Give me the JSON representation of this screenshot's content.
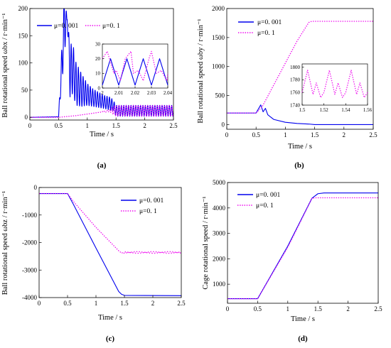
{
  "chart_data": [
    {
      "panel": "(a)",
      "type": "line",
      "xlabel": "Time / s",
      "ylabel": "Ball rotational speed ωbx / r·min⁻¹",
      "xlim": [
        0,
        2.5
      ],
      "ylim": [
        -5,
        200
      ],
      "xticks": [
        "0",
        "0.5",
        "1",
        "1.5",
        "2",
        "2.5"
      ],
      "yticks": [
        "0",
        "50",
        "100",
        "150",
        "200"
      ],
      "legend": "top-left",
      "series": [
        {
          "name": "μ=0. 001",
          "color": "#0000ee",
          "style": "solid",
          "x": [
            0,
            0.5,
            0.6,
            0.65,
            0.7,
            0.75,
            0.8,
            0.9,
            1.0,
            1.1,
            1.2,
            1.3,
            1.4,
            1.45,
            1.5,
            2.0,
            2.5
          ],
          "y": [
            0,
            1,
            170,
            180,
            85,
            90,
            62,
            50,
            42,
            36,
            32,
            28,
            25,
            22,
            12,
            12,
            12
          ],
          "oscillation_amplitude": [
            0,
            0,
            60,
            0,
            50,
            45,
            40,
            30,
            20,
            16,
            14,
            12,
            12,
            10,
            10,
            10,
            10
          ]
        },
        {
          "name": "μ=0. 1",
          "color": "#ee00ee",
          "style": "dotted",
          "x": [
            0,
            0.5,
            0.8,
            1.0,
            1.2,
            1.4,
            1.45,
            1.5,
            2.0,
            2.5
          ],
          "y": [
            0,
            0,
            3,
            6,
            9,
            12,
            13,
            12,
            12,
            12
          ],
          "oscillation_amplitude": [
            0,
            0,
            0,
            0,
            0,
            2,
            8,
            10,
            10,
            10
          ]
        }
      ],
      "inset": {
        "xlim": [
          2,
          2.04
        ],
        "ylim": [
          0,
          30
        ],
        "xticks": [
          "2",
          "2.01",
          "2.02",
          "2.03",
          "2.04"
        ],
        "yticks": [
          "0",
          "10",
          "20",
          "30"
        ],
        "series": [
          {
            "name": "μ=0. 001",
            "x": [
              2,
              2.005,
              2.01,
              2.015,
              2.02,
              2.025,
              2.03,
              2.035,
              2.04
            ],
            "y": [
              2,
              20,
              2,
              20,
              2,
              20,
              2,
              20,
              2
            ]
          },
          {
            "name": "μ=0. 1",
            "x": [
              2,
              2.003,
              2.007,
              2.0085,
              2.011,
              2.014,
              2.0175,
              2.019,
              2.022,
              2.025,
              2.0285,
              2.03,
              2.033,
              2.036,
              2.0395,
              2.04
            ],
            "y": [
              20,
              25,
              10,
              12,
              5,
              20,
              25,
              10,
              12,
              5,
              20,
              25,
              10,
              12,
              5,
              10
            ]
          }
        ]
      }
    },
    {
      "panel": "(b)",
      "type": "line",
      "xlabel": "Time / s",
      "ylabel": "Ball rotational speed ωby / r·min⁻¹",
      "xlim": [
        0,
        2.5
      ],
      "ylim": [
        -80,
        2000
      ],
      "xticks": [
        "0",
        "0.5",
        "1",
        "1.5",
        "2",
        "2.5"
      ],
      "yticks": [
        "0",
        "500",
        "1000",
        "1500",
        "2000"
      ],
      "legend": "top-left",
      "series": [
        {
          "name": "μ=0. 001",
          "color": "#0000ee",
          "style": "solid",
          "x": [
            0,
            0.5,
            0.58,
            0.62,
            0.66,
            0.7,
            0.8,
            1.0,
            1.2,
            1.4,
            1.5,
            2.5
          ],
          "y": [
            200,
            200,
            340,
            220,
            280,
            170,
            90,
            40,
            20,
            10,
            0,
            0
          ]
        },
        {
          "name": "μ=0. 1",
          "color": "#ee00ee",
          "style": "dotted",
          "x": [
            0,
            0.5,
            0.6,
            0.8,
            1.0,
            1.2,
            1.4,
            1.45,
            2.5
          ],
          "y": [
            200,
            200,
            300,
            680,
            1060,
            1440,
            1760,
            1780,
            1780
          ]
        }
      ],
      "inset": {
        "xlim": [
          1.5,
          1.56
        ],
        "ylim": [
          1740,
          1805
        ],
        "xticks": [
          "1.5",
          "1.52",
          "1.54",
          "1.56"
        ],
        "yticks": [
          "1740",
          "1760",
          "1780",
          "1800"
        ],
        "series": [
          {
            "name": "μ=0. 1",
            "x": [
              1.5,
              1.505,
              1.51,
              1.513,
              1.517,
              1.52,
              1.525,
              1.53,
              1.533,
              1.537,
              1.54,
              1.545,
              1.55,
              1.553,
              1.557,
              1.56
            ],
            "y": [
              1760,
              1795,
              1757,
              1775,
              1752,
              1760,
              1795,
              1757,
              1775,
              1752,
              1760,
              1795,
              1757,
              1775,
              1752,
              1760
            ]
          }
        ]
      }
    },
    {
      "panel": "(c)",
      "type": "line",
      "xlabel": "Time / s",
      "ylabel": "Ball rotational speed ωbz / r·min⁻¹",
      "xlim": [
        0,
        2.5
      ],
      "ylim": [
        -4000,
        0
      ],
      "xticks": [
        "0",
        "0.5",
        "1",
        "1.5",
        "2",
        "2.5"
      ],
      "yticks": [
        "0",
        "-1000",
        "-2000",
        "-3000",
        "-4000"
      ],
      "legend": "top-right",
      "series": [
        {
          "name": "μ=0. 001",
          "color": "#0000ee",
          "style": "solid",
          "x": [
            0,
            0.5,
            0.6,
            1.0,
            1.4,
            1.45,
            1.5,
            2.5
          ],
          "y": [
            -220,
            -220,
            -600,
            -2200,
            -3780,
            -3880,
            -3920,
            -3930
          ]
        },
        {
          "name": "μ=0. 1",
          "color": "#ee00ee",
          "style": "dotted",
          "x": [
            0,
            0.5,
            0.6,
            1.0,
            1.4,
            1.45,
            1.5,
            2.5
          ],
          "y": [
            -220,
            -220,
            -500,
            -1450,
            -2300,
            -2380,
            -2360,
            -2360
          ],
          "oscillation_amplitude": [
            0,
            0,
            0,
            0,
            0,
            0,
            30,
            30
          ]
        }
      ]
    },
    {
      "panel": "(d)",
      "type": "line",
      "xlabel": "Time / s",
      "ylabel": "Cage rotational speed / r·min⁻¹",
      "xlim": [
        0,
        2.5
      ],
      "ylim": [
        250,
        5000
      ],
      "xticks": [
        "0",
        "0.5",
        "1",
        "1.5",
        "2",
        "2.5"
      ],
      "yticks": [
        "1000",
        "2000",
        "3000",
        "4000",
        "5000"
      ],
      "legend": "top-left",
      "series": [
        {
          "name": "μ=0. 001",
          "color": "#0000ee",
          "style": "solid",
          "x": [
            0,
            0.5,
            1.0,
            1.4,
            1.5,
            1.6,
            2.5
          ],
          "y": [
            430,
            430,
            2500,
            4380,
            4560,
            4590,
            4590
          ]
        },
        {
          "name": "μ=0. 1",
          "color": "#ee00ee",
          "style": "dotted",
          "x": [
            0,
            0.5,
            1.0,
            1.4,
            1.45,
            2.5
          ],
          "y": [
            430,
            430,
            2450,
            4370,
            4400,
            4400
          ]
        }
      ]
    }
  ]
}
